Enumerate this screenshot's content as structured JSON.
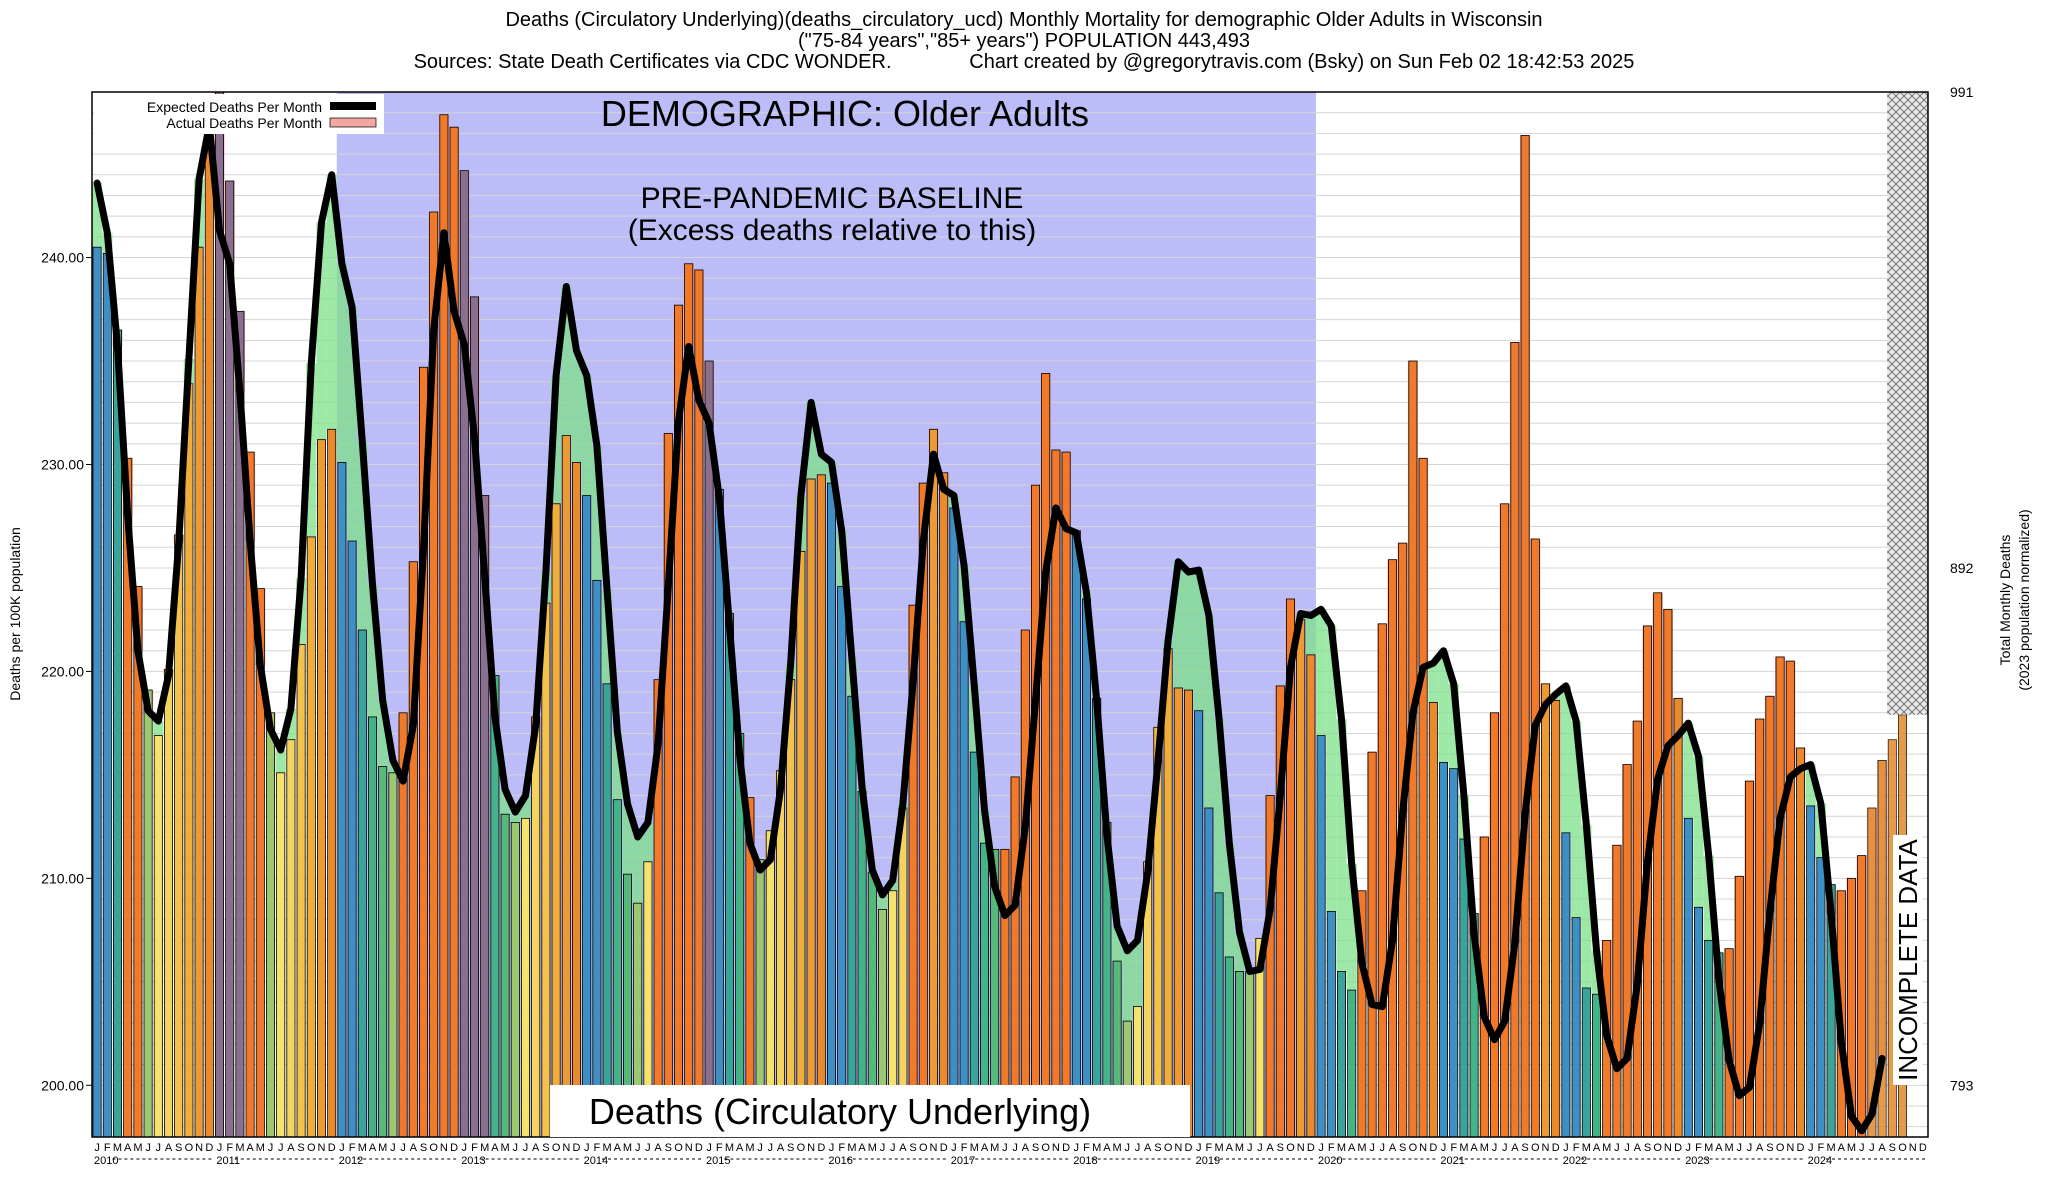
{
  "titles": {
    "line1": "Deaths (Circulatory Underlying)(deaths_circulatory_ucd) Monthly Mortality for demographic Older Adults in Wisconsin",
    "line2": "(\"75-84 years\",\"85+ years\") POPULATION 443,493",
    "line3": "Sources: State Death Certificates via CDC WONDER.              Chart created by @gregorytravis.com (Bsky) on Sun Feb 02 18:42:53 2025"
  },
  "annotations": {
    "demographic": "DEMOGRAPHIC: Older Adults",
    "baseline_line1": "PRE-PANDEMIC BASELINE",
    "baseline_line2": "(Excess deaths relative to this)",
    "cause_box": "Deaths (Circulatory Underlying)",
    "incomplete": "INCOMPLETE DATA"
  },
  "chart_data": {
    "type": "bar",
    "title": "Deaths (Circulatory Underlying)(deaths_circulatory_ucd) Monthly Mortality for demographic Older Adults in Wisconsin",
    "ylabel": "Deaths per 100K population",
    "y2label_line1": "Total Monthly Deaths",
    "y2label_line2": "(2023 population normalized)",
    "ylim": [
      197.5,
      248
    ],
    "yticks": [
      "200.00",
      "210.00",
      "220.00",
      "230.00",
      "240.00"
    ],
    "ytick_values": [
      200,
      210,
      220,
      230,
      240
    ],
    "y2ticks": [
      "793",
      "892",
      "991"
    ],
    "y2tick_values": [
      200,
      225,
      250
    ],
    "month_letters": [
      "J",
      "F",
      "M",
      "A",
      "M",
      "J",
      "J",
      "A",
      "S",
      "O",
      "N",
      "D"
    ],
    "years": [
      "2010",
      "2011",
      "2012",
      "2013",
      "2014",
      "2015",
      "2016",
      "2017",
      "2018",
      "2019",
      "2020",
      "2021",
      "2022",
      "2023",
      "2024"
    ],
    "baseline_years": [
      "2010",
      "2011",
      "2012",
      "2013",
      "2014",
      "2015",
      "2016",
      "2017",
      "2018",
      "2019"
    ],
    "legend": [
      {
        "label": "Expected Deaths Per Month",
        "color": "#000000"
      },
      {
        "label": "Actual Deaths Per Month",
        "color": "#f4a6a0"
      }
    ],
    "incomplete_months": 4,
    "actual": [
      240.5,
      240.2,
      236.5,
      230.3,
      224.1,
      219.1,
      216.9,
      220.1,
      226.6,
      233.9,
      240.5,
      245.8,
      248.0,
      243.7,
      237.4,
      230.6,
      224.0,
      218.0,
      215.1,
      216.7,
      221.3,
      226.5,
      231.2,
      231.7,
      230.1,
      226.3,
      222.0,
      217.8,
      215.4,
      215.1,
      218.0,
      225.3,
      234.7,
      242.2,
      246.9,
      246.3,
      244.2,
      238.1,
      228.5,
      219.8,
      213.1,
      212.7,
      212.9,
      217.8,
      223.3,
      228.1,
      231.4,
      230.1,
      228.5,
      224.4,
      219.4,
      213.8,
      210.2,
      208.8,
      210.8,
      219.6,
      231.5,
      237.7,
      239.7,
      239.4,
      235.0,
      228.8,
      222.8,
      217.0,
      213.9,
      210.9,
      212.3,
      215.2,
      219.6,
      225.8,
      229.3,
      229.5,
      229.1,
      224.1,
      218.8,
      214.2,
      210.3,
      208.5,
      209.4,
      213.4,
      223.2,
      229.1,
      231.7,
      229.6,
      227.9,
      222.4,
      216.1,
      211.7,
      211.4,
      211.4,
      214.9,
      222.0,
      229.0,
      234.4,
      230.7,
      230.6,
      226.8,
      223.5,
      218.7,
      212.7,
      206.0,
      203.1,
      203.8,
      210.8,
      217.3,
      221.1,
      219.2,
      219.1,
      218.1,
      213.4,
      209.3,
      206.2,
      205.5,
      205.5,
      207.1,
      214.0,
      219.3,
      223.5,
      222.5,
      220.8,
      216.9,
      208.4,
      205.5,
      204.6,
      209.4,
      216.1,
      222.3,
      225.4,
      226.2,
      235.0,
      230.3,
      218.5,
      215.6,
      215.3,
      211.9,
      208.3,
      212.0,
      218.0,
      228.1,
      235.9,
      245.9,
      226.4,
      219.4,
      218.6,
      212.2,
      208.1,
      204.7,
      204.4,
      207.0,
      211.6,
      215.5,
      217.6,
      222.2,
      223.8,
      223.0,
      218.7,
      212.9,
      208.6,
      207.0,
      206.4,
      206.6,
      210.1,
      214.7,
      217.7,
      218.8,
      220.7,
      220.5,
      216.3,
      213.5,
      211.0,
      209.7,
      209.4,
      210.0,
      211.1,
      213.4,
      215.7,
      216.7,
      217.9
    ],
    "expected": [
      243.6,
      241.2,
      235.7,
      227.5,
      221.0,
      218.1,
      217.6,
      219.8,
      226.2,
      235.1,
      243.8,
      246.4,
      241.3,
      239.7,
      233.5,
      226.3,
      220.3,
      217.2,
      216.2,
      218.2,
      224.5,
      234.9,
      241.7,
      244.0,
      239.7,
      237.6,
      231.1,
      224.2,
      218.6,
      215.7,
      214.7,
      217.4,
      225.9,
      236.5,
      241.2,
      237.4,
      235.8,
      231.3,
      224.6,
      217.8,
      214.3,
      213.2,
      214.0,
      217.4,
      224.8,
      234.3,
      238.6,
      235.5,
      234.3,
      230.9,
      223.9,
      217.1,
      213.6,
      212.0,
      212.7,
      216.5,
      224.1,
      232.1,
      235.7,
      233.1,
      232.0,
      228.4,
      222.2,
      215.9,
      211.7,
      210.4,
      210.9,
      214.3,
      220.4,
      228.5,
      233.0,
      230.5,
      230.1,
      226.8,
      220.6,
      214.4,
      210.4,
      209.2,
      209.9,
      213.6,
      219.5,
      226.3,
      230.5,
      228.8,
      228.5,
      225.1,
      219.3,
      213.3,
      209.6,
      208.2,
      208.7,
      212.5,
      218.6,
      224.8,
      227.9,
      226.9,
      226.7,
      223.8,
      218.6,
      212.1,
      207.7,
      206.5,
      207.0,
      210.3,
      215.6,
      221.5,
      225.3,
      224.8,
      224.9,
      222.7,
      217.7,
      211.7,
      207.4,
      205.5,
      205.6,
      208.5,
      214.0,
      220.2,
      222.8,
      222.7,
      223.0,
      222.2,
      217.7,
      210.7,
      205.9,
      203.9,
      203.8,
      207.0,
      213.2,
      218.0,
      220.2,
      220.4,
      221.0,
      219.4,
      214.0,
      207.3,
      203.3,
      202.2,
      203.1,
      206.9,
      213.1,
      217.4,
      218.4,
      218.9,
      219.3,
      217.6,
      212.6,
      206.5,
      202.4,
      200.8,
      201.3,
      204.9,
      210.8,
      214.8,
      216.4,
      216.9,
      217.5,
      215.9,
      211.1,
      205.1,
      201.2,
      199.5,
      199.9,
      203.0,
      208.4,
      212.9,
      214.9,
      215.3,
      215.5,
      213.6,
      208.3,
      202.1,
      198.5,
      197.8,
      198.6,
      201.3
    ]
  }
}
